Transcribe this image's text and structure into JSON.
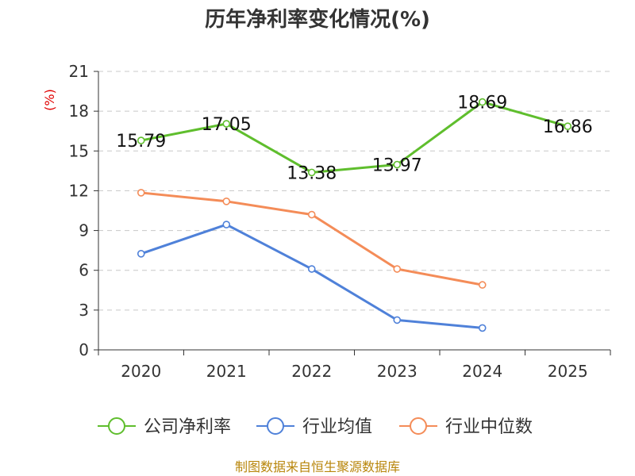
{
  "chart_data": {
    "type": "line",
    "title": "历年净利率变化情况(%)",
    "ylabel": "(%)",
    "xlabel": "",
    "categories": [
      "2020",
      "2021",
      "2022",
      "2023",
      "2024",
      "2025"
    ],
    "ylim": [
      0,
      21
    ],
    "yticks": [
      0,
      3,
      6,
      9,
      12,
      15,
      18,
      21
    ],
    "grid": true,
    "legend_position": "bottom",
    "series": [
      {
        "name": "公司净利率",
        "color": "#5fbe2d",
        "values": [
          15.79,
          17.05,
          13.38,
          13.97,
          18.69,
          16.86
        ],
        "labels": [
          "15.79",
          "17.05",
          "13.38",
          "13.97",
          "18.69",
          "16.86"
        ]
      },
      {
        "name": "行业均值",
        "color": "#4f81d9",
        "values": [
          7.25,
          9.45,
          6.1,
          2.25,
          1.65,
          null
        ]
      },
      {
        "name": "行业中位数",
        "color": "#f48c58",
        "values": [
          11.85,
          11.2,
          10.2,
          6.1,
          4.9,
          null
        ]
      }
    ]
  },
  "source_text": "制图数据来自恒生聚源数据库"
}
